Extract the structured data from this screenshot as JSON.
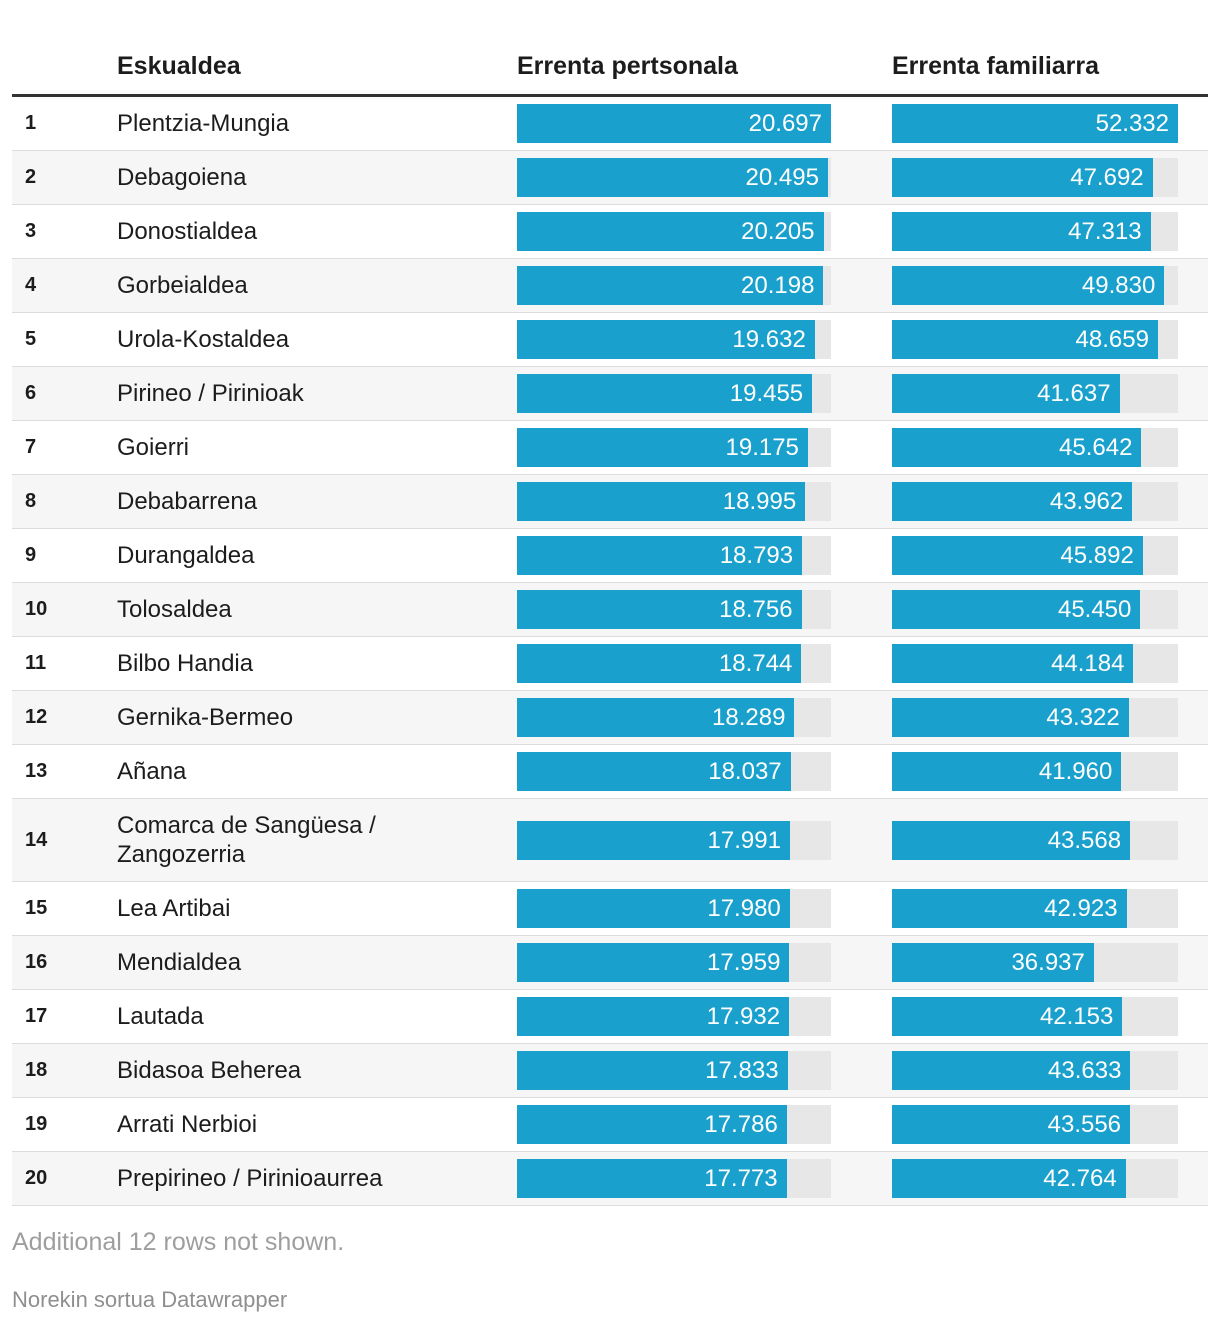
{
  "header": {
    "region_col": "Eskualdea",
    "personal_col": "Errenta pertsonala",
    "family_col": "Errenta familiarra"
  },
  "chart_data": {
    "type": "table",
    "columns": [
      "Eskualdea",
      "Errenta pertsonala",
      "Errenta familiarra"
    ],
    "bar_scaling": "each numeric column scaled from 0 to its own max value",
    "rows": [
      {
        "rank": "1",
        "region": "Plentzia-Mungia",
        "personal": 20697,
        "family": 52332
      },
      {
        "rank": "2",
        "region": "Debagoiena",
        "personal": 20495,
        "family": 47692
      },
      {
        "rank": "3",
        "region": "Donostialdea",
        "personal": 20205,
        "family": 47313
      },
      {
        "rank": "4",
        "region": "Gorbeialdea",
        "personal": 20198,
        "family": 49830
      },
      {
        "rank": "5",
        "region": "Urola-Kostaldea",
        "personal": 19632,
        "family": 48659
      },
      {
        "rank": "6",
        "region": "Pirineo / Pirinioak",
        "personal": 19455,
        "family": 41637
      },
      {
        "rank": "7",
        "region": "Goierri",
        "personal": 19175,
        "family": 45642
      },
      {
        "rank": "8",
        "region": "Debabarrena",
        "personal": 18995,
        "family": 43962
      },
      {
        "rank": "9",
        "region": "Durangaldea",
        "personal": 18793,
        "family": 45892
      },
      {
        "rank": "10",
        "region": "Tolosaldea",
        "personal": 18756,
        "family": 45450
      },
      {
        "rank": "11",
        "region": "Bilbo Handia",
        "personal": 18744,
        "family": 44184
      },
      {
        "rank": "12",
        "region": "Gernika-Bermeo",
        "personal": 18289,
        "family": 43322
      },
      {
        "rank": "13",
        "region": "Añana",
        "personal": 18037,
        "family": 41960
      },
      {
        "rank": "14",
        "region": "Comarca de Sangüesa / Zangozerria",
        "personal": 17991,
        "family": 43568
      },
      {
        "rank": "15",
        "region": "Lea Artibai",
        "personal": 17980,
        "family": 42923
      },
      {
        "rank": "16",
        "region": "Mendialdea",
        "personal": 17959,
        "family": 36937
      },
      {
        "rank": "17",
        "region": "Lautada",
        "personal": 17932,
        "family": 42153
      },
      {
        "rank": "18",
        "region": "Bidasoa Beherea",
        "personal": 17833,
        "family": 43633
      },
      {
        "rank": "19",
        "region": "Arrati Nerbioi",
        "personal": 17786,
        "family": 43556
      },
      {
        "rank": "20",
        "region": "Prepirineo / Pirinioaurrea",
        "personal": 17773,
        "family": 42764
      }
    ]
  },
  "footer": {
    "note": "Additional 12 rows not shown.",
    "attribution_prefix": "Norekin sortua ",
    "attribution_link": "Datawrapper"
  },
  "colors": {
    "bar": "#1aa0cc",
    "track": "#e7e7e7",
    "stripe_row": "#f6f6f6",
    "header_rule": "#333333",
    "row_separator": "#dcdcdc",
    "note_text": "#9e9e9e",
    "attribution_text": "#8f8f8f"
  }
}
